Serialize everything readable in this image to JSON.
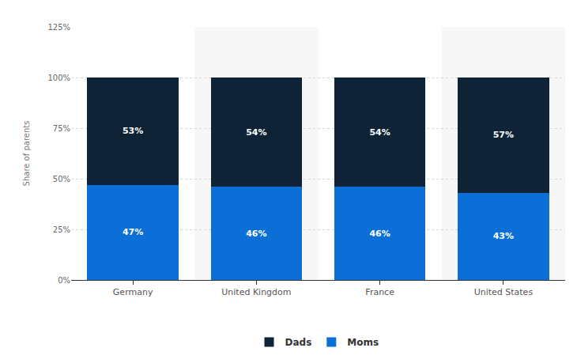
{
  "chart_data": {
    "type": "bar",
    "stacked": true,
    "data_labels": true,
    "grid": true,
    "legend": "bottom",
    "y_label": "Share of parents",
    "categories": [
      "Germany",
      "United Kingdom",
      "France",
      "United States"
    ],
    "series": [
      {
        "name": "Moms",
        "color": "#0b6fd7",
        "values": [
          47,
          46,
          46,
          43
        ],
        "value_labels": [
          "47%",
          "46%",
          "46%",
          "43%"
        ]
      },
      {
        "name": "Dads",
        "color": "#0e2336",
        "values": [
          53,
          54,
          54,
          57
        ],
        "value_labels": [
          "53%",
          "54%",
          "54%",
          "57%"
        ]
      }
    ],
    "ylim": [
      0,
      125
    ],
    "yticks": [
      {
        "value": 0,
        "label": "0%"
      },
      {
        "value": 25,
        "label": "25%"
      },
      {
        "value": 50,
        "label": "50%"
      },
      {
        "value": 75,
        "label": "75%"
      },
      {
        "value": 100,
        "label": "100%"
      },
      {
        "value": 125,
        "label": "125%"
      }
    ]
  }
}
